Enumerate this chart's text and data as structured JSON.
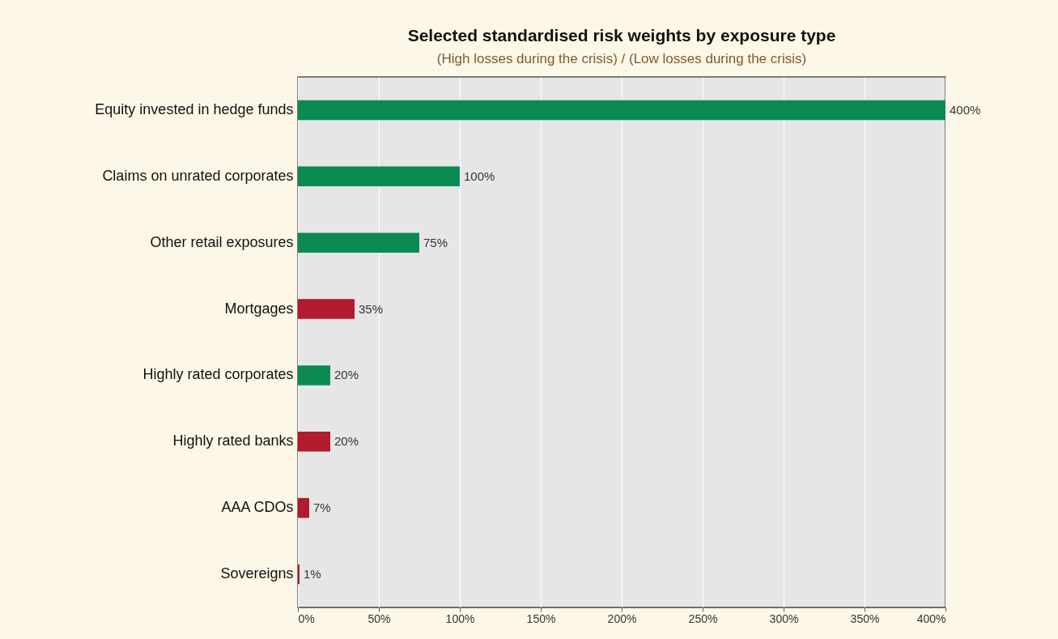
{
  "chart_data": {
    "type": "bar",
    "orientation": "horizontal",
    "title": "Selected standardised risk weights by exposure type",
    "subtitle": "(High losses during the crisis) / (Low losses during the crisis)",
    "categories": [
      "Equity invested in hedge funds",
      "Claims on unrated corporates",
      "Other retail exposures",
      "Mortgages",
      "Highly rated corporates",
      "Highly rated banks",
      "AAA CDOs",
      "Sovereigns"
    ],
    "values": [
      400,
      100,
      75,
      35,
      20,
      20,
      7,
      1
    ],
    "colors": [
      "#0b8a52",
      "#0b8a52",
      "#0b8a52",
      "#b01c2e",
      "#0b8a52",
      "#b01c2e",
      "#b01c2e",
      "#b01c2e"
    ],
    "value_labels": [
      "400%",
      "100%",
      "75%",
      "35%",
      "20%",
      "20%",
      "7%",
      "1%"
    ],
    "xlim": [
      0,
      400
    ],
    "xticks": [
      {
        "value": 0,
        "label": "0%"
      },
      {
        "value": 50,
        "label": "50%"
      },
      {
        "value": 100,
        "label": "100%"
      },
      {
        "value": 150,
        "label": "150%"
      },
      {
        "value": 200,
        "label": "200%"
      },
      {
        "value": 250,
        "label": "250%"
      },
      {
        "value": 300,
        "label": "300%"
      },
      {
        "value": 350,
        "label": "350%"
      },
      {
        "value": 400,
        "label": "400%"
      }
    ],
    "grid": "x"
  }
}
